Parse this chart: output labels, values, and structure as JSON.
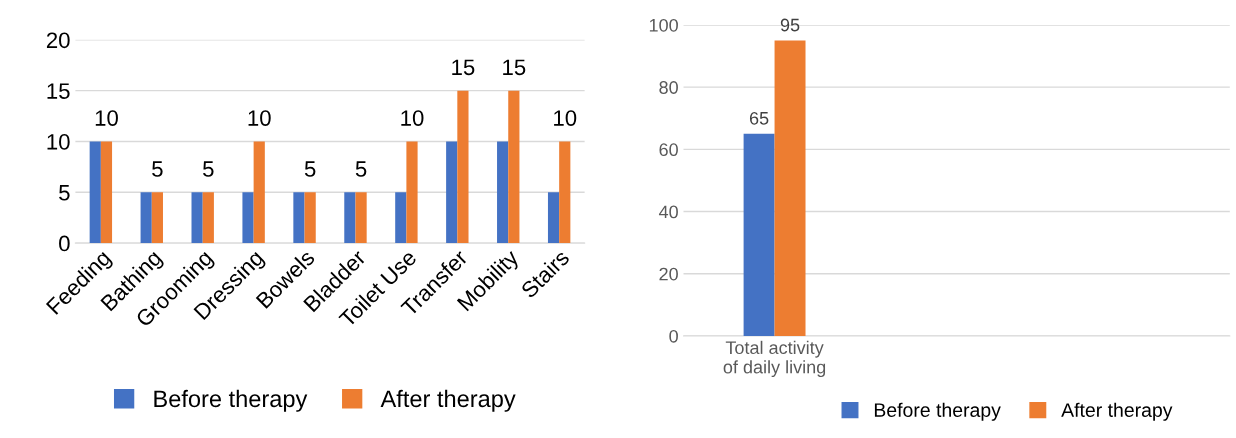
{
  "chart_data": [
    {
      "type": "bar",
      "categories": [
        "Feeding",
        "Bathing",
        "Grooming",
        "Dressing",
        "Bowels",
        "Bladder",
        "Toilet Use",
        "Transfer",
        "Mobility",
        "Stairs"
      ],
      "series": [
        {
          "name": "Before therapy",
          "color": "#4472c4",
          "values": [
            10,
            5,
            5,
            5,
            5,
            5,
            5,
            10,
            10,
            5
          ]
        },
        {
          "name": "After therapy",
          "color": "#ed7d31",
          "values": [
            10,
            5,
            5,
            10,
            5,
            5,
            10,
            15,
            15,
            10
          ],
          "value_labels": [
            "10",
            "5",
            "5",
            "10",
            "5",
            "5",
            "10",
            "15",
            "15",
            "10"
          ]
        }
      ],
      "ylim": [
        0,
        20
      ],
      "yticks": [
        0,
        5,
        10,
        15,
        20
      ],
      "grid": "y",
      "legend": "bottom"
    },
    {
      "type": "bar",
      "categories": [
        "Total activity\nof daily living",
        null,
        null
      ],
      "series": [
        {
          "name": "Before therapy",
          "color": "#4472c4",
          "values": [
            65,
            null,
            null
          ]
        },
        {
          "name": "After therapy",
          "color": "#ed7d31",
          "values": [
            95,
            null,
            null
          ]
        }
      ],
      "ylim": [
        0,
        100
      ],
      "yticks": [
        0,
        20,
        40,
        60,
        80,
        100
      ],
      "grid": "y",
      "legend": "bottom",
      "data_labels": true
    }
  ]
}
